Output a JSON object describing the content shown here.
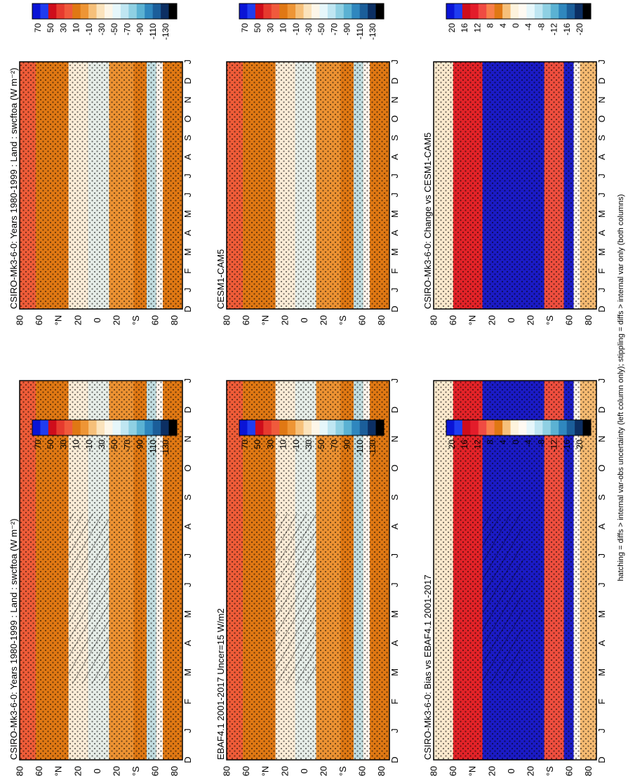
{
  "figure": {
    "caption": "hatching = diffs > internal var-obs uncertainty (left column only); stippling = diffs > internal var only (both columns)"
  },
  "x_ticks": [
    "D",
    "J",
    "F",
    "M",
    "A",
    "M",
    "J",
    "J",
    "A",
    "S",
    "O",
    "N",
    "D",
    "J"
  ],
  "lat_ticks": [
    "80",
    "60",
    "°N",
    "20",
    "0",
    "20",
    "°S",
    "60",
    "80"
  ],
  "colors": {
    "abs_scale": [
      "#0a14d6",
      "#1f3cf0",
      "#cf0d1b",
      "#e63a2e",
      "#f05a3c",
      "#e07814",
      "#ee9535",
      "#f6c07a",
      "#fbe3bc",
      "#fdf6e8",
      "#e6f7fb",
      "#bfe6f2",
      "#8fd0e3",
      "#5bb2d3",
      "#2f87be",
      "#1b5e9a",
      "#0c2f63",
      "#000000"
    ],
    "diff_scale": [
      "#0a14d6",
      "#1f3cf0",
      "#cf0d1b",
      "#e31c2a",
      "#f04b42",
      "#f87f4a",
      "#e07814",
      "#f6c07a",
      "#fdf3dd",
      "#fffaf2",
      "#e6f7fb",
      "#bfe6f2",
      "#8fd0e3",
      "#5bb2d3",
      "#2f87be",
      "#1b5e9a",
      "#0c2f63",
      "#000000"
    ]
  },
  "chart_data": [
    {
      "panel": "top-left",
      "type": "heatmap",
      "title": "CSIRO-Mk3-6-0: Years 1980-1999 : Land : swcftoa (W m⁻²)",
      "colorbar_ticks": [
        "70",
        "50",
        "30",
        "10",
        "-10",
        "-30",
        "-50",
        "-70",
        "-90",
        "-110",
        "-130"
      ],
      "hatching": true,
      "stippling": true
    },
    {
      "panel": "mid-left",
      "type": "heatmap",
      "title": "EBAF4.1 2001-2017 Uncer=15 W/m2",
      "colorbar_ticks": [
        "70",
        "50",
        "30",
        "10",
        "-10",
        "-30",
        "-50",
        "-70",
        "-90",
        "-110",
        "-130"
      ],
      "hatching": true,
      "stippling": true
    },
    {
      "panel": "bot-left",
      "type": "heatmap",
      "title": "CSIRO-Mk3-6-0: Bias vs EBAF4.1 2001-2017",
      "colorbar_ticks": [
        "20",
        "16",
        "12",
        "8",
        "4",
        "0",
        "-4",
        "-8",
        "-12",
        "-16",
        "-20"
      ],
      "hatching": true,
      "stippling": true
    },
    {
      "panel": "top-right",
      "type": "heatmap",
      "title": "CSIRO-Mk3-6-0: Years 1980-1999 : Land : swcftoa (W m⁻²)",
      "colorbar_ticks": [
        "70",
        "50",
        "30",
        "10",
        "-10",
        "-30",
        "-50",
        "-70",
        "-90",
        "-110",
        "-130"
      ],
      "hatching": false,
      "stippling": true
    },
    {
      "panel": "mid-right",
      "type": "heatmap",
      "title": "CESM1-CAM5",
      "colorbar_ticks": [
        "70",
        "50",
        "30",
        "10",
        "-10",
        "-30",
        "-50",
        "-70",
        "-90",
        "-110",
        "-130"
      ],
      "hatching": false,
      "stippling": true
    },
    {
      "panel": "bot-right",
      "type": "heatmap",
      "title": "CSIRO-Mk3-6-0: Change vs CESM1-CAM5",
      "colorbar_ticks": [
        "20",
        "16",
        "12",
        "8",
        "4",
        "0",
        "-4",
        "-8",
        "-12",
        "-16",
        "-20"
      ],
      "hatching": false,
      "stippling": true
    }
  ]
}
